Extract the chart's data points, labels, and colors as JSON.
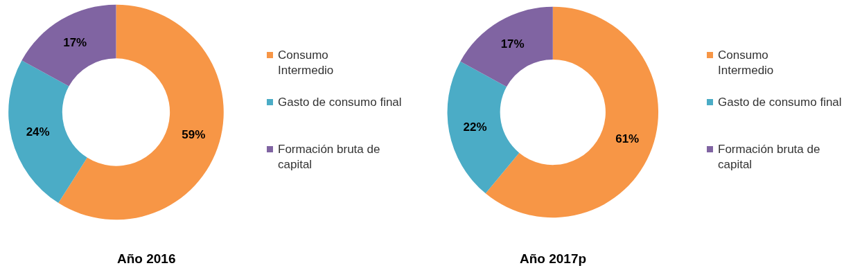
{
  "chart_data": [
    {
      "type": "donut",
      "title": "Año 2016",
      "categories": [
        "Consumo Intermedio",
        "Gasto de consumo final",
        "Formación bruta de capital"
      ],
      "values": [
        59,
        24,
        17
      ],
      "value_labels": [
        "59%",
        "24%",
        "17%"
      ],
      "colors": [
        "#f79646",
        "#4bacc6",
        "#8064a2"
      ],
      "legend": "right"
    },
    {
      "type": "donut",
      "title": "Año 2017p",
      "categories": [
        "Consumo Intermedio",
        "Gasto de consumo final",
        "Formación bruta de capital"
      ],
      "values": [
        61,
        22,
        17
      ],
      "value_labels": [
        "61%",
        "22%",
        "17%"
      ],
      "colors": [
        "#f79646",
        "#4bacc6",
        "#8064a2"
      ],
      "legend": "right"
    }
  ]
}
